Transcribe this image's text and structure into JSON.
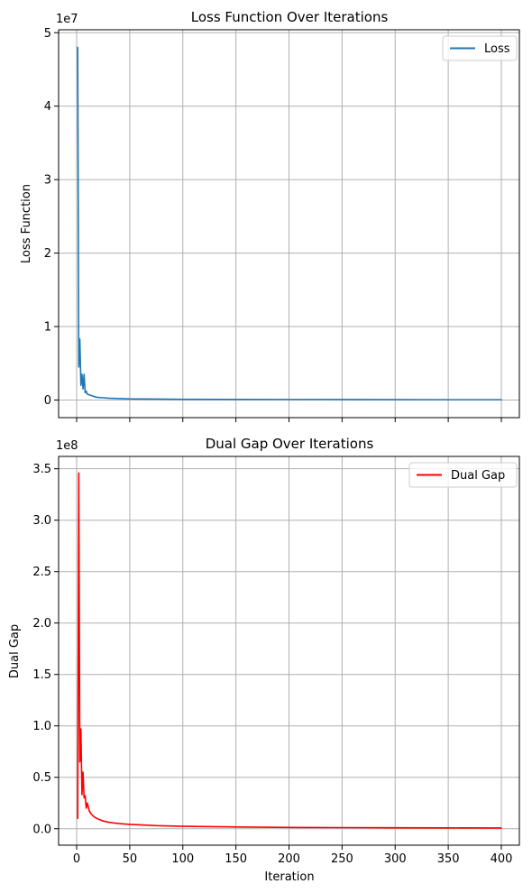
{
  "chart_data": [
    {
      "type": "line",
      "title": "Loss Function Over Iterations",
      "xlabel": "",
      "ylabel": "Loss Function",
      "y_offset_label": "1e7",
      "xlim": [
        -17,
        417
      ],
      "ylim": [
        -0.24,
        5.04
      ],
      "x_ticks": [
        0,
        50,
        100,
        150,
        200,
        250,
        300,
        350,
        400
      ],
      "x_tick_labels_visible": false,
      "y_ticks": [
        0,
        1,
        2,
        3,
        4,
        5
      ],
      "y_tick_labels": [
        "0",
        "1",
        "2",
        "3",
        "4",
        "5"
      ],
      "grid": true,
      "legend_position": "top-right",
      "series": [
        {
          "name": "Loss",
          "color": "#1f77b4",
          "x": [
            1,
            2,
            3,
            4,
            5,
            6,
            7,
            8,
            9,
            10,
            12,
            14,
            16,
            18,
            20,
            25,
            30,
            40,
            50,
            75,
            100,
            150,
            200,
            250,
            300,
            350,
            400
          ],
          "y": [
            4.8,
            0.45,
            0.83,
            0.2,
            0.35,
            0.15,
            0.35,
            0.1,
            0.12,
            0.08,
            0.07,
            0.06,
            0.05,
            0.04,
            0.035,
            0.03,
            0.025,
            0.02,
            0.015,
            0.012,
            0.01,
            0.008,
            0.007,
            0.006,
            0.005,
            0.004,
            0.004
          ]
        }
      ]
    },
    {
      "type": "line",
      "title": "Dual Gap Over Iterations",
      "xlabel": "Iteration",
      "ylabel": "Dual Gap",
      "y_offset_label": "1e8",
      "xlim": [
        -17,
        417
      ],
      "ylim": [
        -0.16,
        3.62
      ],
      "x_ticks": [
        0,
        50,
        100,
        150,
        200,
        250,
        300,
        350,
        400
      ],
      "x_tick_labels": [
        "0",
        "50",
        "100",
        "150",
        "200",
        "250",
        "300",
        "350",
        "400"
      ],
      "y_ticks": [
        0,
        0.5,
        1.0,
        1.5,
        2.0,
        2.5,
        3.0,
        3.5
      ],
      "y_tick_labels": [
        "0.0",
        "0.5",
        "1.0",
        "1.5",
        "2.0",
        "2.5",
        "3.0",
        "3.5"
      ],
      "grid": true,
      "legend_position": "top-right",
      "series": [
        {
          "name": "Dual Gap",
          "color": "#ff0000",
          "x": [
            1,
            2,
            3,
            4,
            5,
            6,
            7,
            8,
            9,
            10,
            12,
            14,
            16,
            18,
            20,
            25,
            30,
            40,
            50,
            75,
            100,
            150,
            200,
            250,
            300,
            350,
            400
          ],
          "y": [
            0.1,
            3.46,
            0.65,
            0.97,
            0.33,
            0.55,
            0.3,
            0.32,
            0.2,
            0.25,
            0.17,
            0.14,
            0.12,
            0.105,
            0.095,
            0.075,
            0.063,
            0.05,
            0.042,
            0.03,
            0.024,
            0.017,
            0.013,
            0.011,
            0.009,
            0.008,
            0.007
          ]
        }
      ]
    }
  ]
}
